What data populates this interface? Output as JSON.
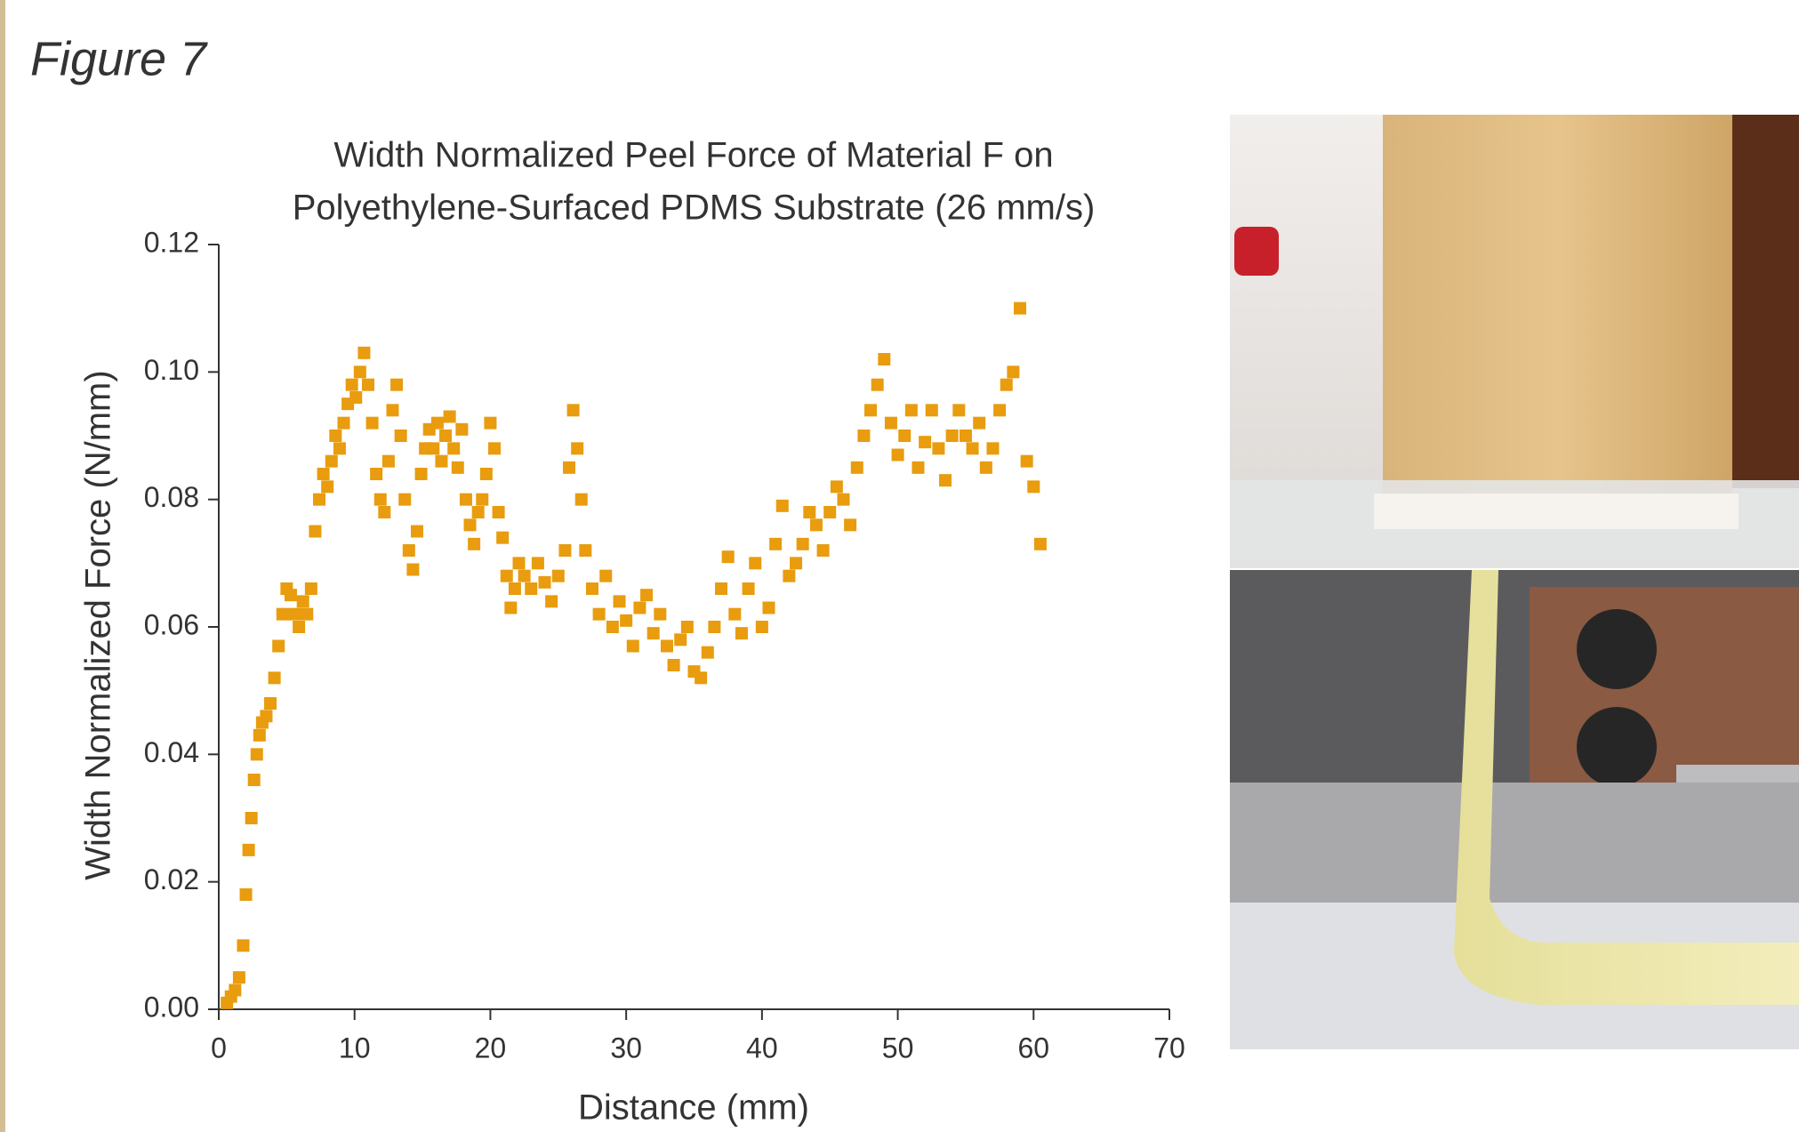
{
  "figure_label": "Figure 7",
  "chart_data": {
    "type": "scatter",
    "title": [
      "Width Normalized Peel Force of Material F on",
      "Polyethylene-Surfaced PDMS Substrate (26 mm/s)"
    ],
    "x_label": "Distance (mm)",
    "y_label": "Width Normalized Force (N/mm)",
    "color": "#e89c0e",
    "xlim": [
      0,
      70
    ],
    "xticks": [
      0,
      10,
      20,
      30,
      40,
      50,
      60,
      70
    ],
    "ylim": [
      0,
      0.12
    ],
    "yticks": [
      {
        "value": 0,
        "label": "0.00"
      },
      {
        "value": 0.02,
        "label": "0.02"
      },
      {
        "value": 0.04,
        "label": "0.04"
      },
      {
        "value": 0.06,
        "label": "0.06"
      },
      {
        "value": 0.08,
        "label": "0.08"
      },
      {
        "value": 0.1,
        "label": "0.10"
      },
      {
        "value": 0.12,
        "label": "0.12"
      }
    ],
    "x": [
      0.6,
      0.9,
      1.2,
      1.5,
      1.8,
      2.0,
      2.2,
      2.4,
      2.6,
      2.8,
      3.0,
      3.2,
      3.5,
      3.8,
      4.1,
      4.4,
      4.7,
      5.0,
      5.3,
      5.6,
      5.9,
      6.2,
      6.5,
      6.8,
      7.1,
      7.4,
      7.7,
      8.0,
      8.3,
      8.6,
      8.9,
      9.2,
      9.5,
      9.8,
      10.1,
      10.4,
      10.7,
      11.0,
      11.3,
      11.6,
      11.9,
      12.2,
      12.5,
      12.8,
      13.1,
      13.4,
      13.7,
      14.0,
      14.3,
      14.6,
      14.9,
      15.2,
      15.5,
      15.8,
      16.1,
      16.4,
      16.7,
      17.0,
      17.3,
      17.6,
      17.9,
      18.2,
      18.5,
      18.8,
      19.1,
      19.4,
      19.7,
      20.0,
      20.3,
      20.6,
      20.9,
      21.2,
      21.5,
      21.8,
      22.1,
      22.5,
      23,
      23.5,
      24,
      24.5,
      25,
      25.5,
      25.8,
      26.1,
      26.4,
      26.7,
      27,
      27.5,
      28,
      28.5,
      29,
      29.5,
      30,
      30.5,
      31,
      31.5,
      32,
      32.5,
      33,
      33.5,
      34,
      34.5,
      35,
      35.5,
      36,
      36.5,
      37,
      37.5,
      38,
      38.5,
      39,
      39.5,
      40,
      40.5,
      41,
      41.5,
      42,
      42.5,
      43,
      43.5,
      44,
      44.5,
      45,
      45.5,
      46,
      46.5,
      47,
      47.5,
      48,
      48.5,
      49,
      49.5,
      50,
      50.5,
      51,
      51.5,
      52,
      52.5,
      53,
      53.5,
      54,
      54.5,
      55,
      55.5,
      56,
      56.5,
      57,
      57.5,
      58,
      58.5,
      59,
      59.5,
      60,
      60.5
    ],
    "y": [
      0.001,
      0.002,
      0.003,
      0.005,
      0.01,
      0.018,
      0.025,
      0.03,
      0.036,
      0.04,
      0.043,
      0.045,
      0.046,
      0.048,
      0.052,
      0.057,
      0.062,
      0.066,
      0.065,
      0.062,
      0.06,
      0.064,
      0.062,
      0.066,
      0.075,
      0.08,
      0.084,
      0.082,
      0.086,
      0.09,
      0.088,
      0.092,
      0.095,
      0.098,
      0.096,
      0.1,
      0.103,
      0.098,
      0.092,
      0.084,
      0.08,
      0.078,
      0.086,
      0.094,
      0.098,
      0.09,
      0.08,
      0.072,
      0.069,
      0.075,
      0.084,
      0.088,
      0.091,
      0.088,
      0.092,
      0.086,
      0.09,
      0.093,
      0.088,
      0.085,
      0.091,
      0.08,
      0.076,
      0.073,
      0.078,
      0.08,
      0.084,
      0.092,
      0.088,
      0.078,
      0.074,
      0.068,
      0.063,
      0.066,
      0.07,
      0.068,
      0.066,
      0.07,
      0.067,
      0.064,
      0.068,
      0.072,
      0.085,
      0.094,
      0.088,
      0.08,
      0.072,
      0.066,
      0.062,
      0.068,
      0.06,
      0.064,
      0.061,
      0.057,
      0.063,
      0.065,
      0.059,
      0.062,
      0.057,
      0.054,
      0.058,
      0.06,
      0.053,
      0.052,
      0.056,
      0.06,
      0.066,
      0.071,
      0.062,
      0.059,
      0.066,
      0.07,
      0.06,
      0.063,
      0.073,
      0.079,
      0.068,
      0.07,
      0.073,
      0.078,
      0.076,
      0.072,
      0.078,
      0.082,
      0.08,
      0.076,
      0.085,
      0.09,
      0.094,
      0.098,
      0.102,
      0.092,
      0.087,
      0.09,
      0.094,
      0.085,
      0.089,
      0.094,
      0.088,
      0.083,
      0.09,
      0.094,
      0.09,
      0.088,
      0.092,
      0.085,
      0.088,
      0.094,
      0.098,
      0.1,
      0.11,
      0.086,
      0.082,
      0.073
    ]
  }
}
